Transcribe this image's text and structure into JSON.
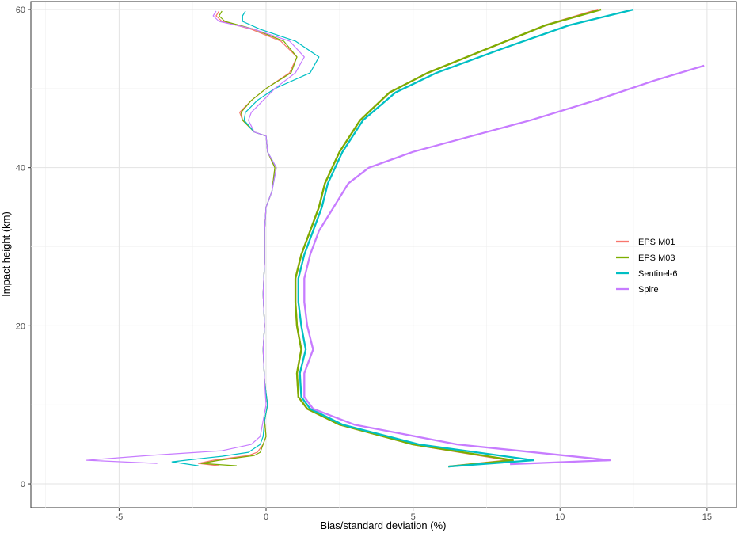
{
  "chart_data": {
    "type": "line",
    "title": "",
    "xlabel": "Bias/standard deviation (%)",
    "ylabel": "Impact height (km)",
    "xlim": [
      -8,
      16
    ],
    "ylim": [
      -3,
      61
    ],
    "x_ticks": [
      {
        "value": -5,
        "label": "-5"
      },
      {
        "value": 0,
        "label": "0"
      },
      {
        "value": 5,
        "label": "5"
      },
      {
        "value": 10,
        "label": "10"
      },
      {
        "value": 15,
        "label": "15"
      }
    ],
    "y_ticks": [
      {
        "value": 0,
        "label": "0"
      },
      {
        "value": 20,
        "label": "20"
      },
      {
        "value": 40,
        "label": "40"
      },
      {
        "value": 60,
        "label": "60"
      }
    ],
    "grid": true,
    "legend_position": "right",
    "series": [
      {
        "name": "EPS M01",
        "color": "#F8766D",
        "bias": [
          [
            -1.6,
            2.3
          ],
          [
            -2.3,
            2.6
          ],
          [
            -1.8,
            3
          ],
          [
            -1.2,
            3.3
          ],
          [
            -0.6,
            3.6
          ],
          [
            -0.3,
            4
          ],
          [
            -0.1,
            5
          ],
          [
            0,
            6
          ],
          [
            -0.05,
            8
          ],
          [
            0.05,
            10
          ],
          [
            -0.05,
            13
          ],
          [
            -0.1,
            17
          ],
          [
            -0.05,
            20
          ],
          [
            -0.1,
            24
          ],
          [
            -0.05,
            28
          ],
          [
            -0.05,
            32
          ],
          [
            0,
            35
          ],
          [
            0.2,
            37
          ],
          [
            0.3,
            40
          ],
          [
            0.05,
            42
          ],
          [
            0,
            44
          ],
          [
            -0.4,
            44.5
          ],
          [
            -0.8,
            46
          ],
          [
            -0.9,
            47
          ],
          [
            -0.5,
            48.5
          ],
          [
            0,
            50
          ],
          [
            0.8,
            52
          ],
          [
            1.05,
            54
          ],
          [
            0.5,
            56
          ],
          [
            -0.5,
            57.5
          ],
          [
            -1.5,
            58.5
          ],
          [
            -1.7,
            59.2
          ],
          [
            -1.6,
            59.8
          ]
        ],
        "std": [
          [
            6.2,
            2.2
          ],
          [
            8.3,
            3
          ],
          [
            5,
            5
          ],
          [
            2.5,
            7.5
          ],
          [
            1.4,
            9.5
          ],
          [
            1.1,
            11
          ],
          [
            1.05,
            14
          ],
          [
            1.2,
            17
          ],
          [
            1.05,
            20
          ],
          [
            1.0,
            23
          ],
          [
            1.0,
            26
          ],
          [
            1.2,
            29
          ],
          [
            1.5,
            32
          ],
          [
            1.8,
            35
          ],
          [
            2.0,
            38
          ],
          [
            2.5,
            42
          ],
          [
            3.2,
            46
          ],
          [
            4.2,
            49.5
          ],
          [
            5.5,
            52
          ],
          [
            7.5,
            55
          ],
          [
            9.5,
            58
          ],
          [
            11.3,
            60
          ]
        ]
      },
      {
        "name": "EPS M03",
        "color": "#7CAE00",
        "bias": [
          [
            -1.0,
            2.3
          ],
          [
            -2.2,
            2.6
          ],
          [
            -1.6,
            3
          ],
          [
            -1.0,
            3.3
          ],
          [
            -0.4,
            3.6
          ],
          [
            -0.2,
            4
          ],
          [
            -0.1,
            5
          ],
          [
            0,
            6
          ],
          [
            -0.05,
            8
          ],
          [
            0.05,
            10
          ],
          [
            -0.05,
            13
          ],
          [
            -0.1,
            17
          ],
          [
            -0.05,
            20
          ],
          [
            -0.1,
            24
          ],
          [
            -0.05,
            28
          ],
          [
            -0.05,
            32
          ],
          [
            0,
            35
          ],
          [
            0.2,
            37
          ],
          [
            0.3,
            40
          ],
          [
            0.05,
            42
          ],
          [
            0,
            44
          ],
          [
            -0.4,
            44.5
          ],
          [
            -0.8,
            46
          ],
          [
            -0.85,
            47
          ],
          [
            -0.5,
            48.5
          ],
          [
            0,
            50
          ],
          [
            0.85,
            52
          ],
          [
            1.05,
            54
          ],
          [
            0.6,
            56
          ],
          [
            -0.4,
            57.5
          ],
          [
            -1.4,
            58.5
          ],
          [
            -1.6,
            59.2
          ],
          [
            -1.5,
            59.8
          ]
        ],
        "std": [
          [
            6.2,
            2.2
          ],
          [
            8.4,
            3
          ],
          [
            5,
            5
          ],
          [
            2.5,
            7.5
          ],
          [
            1.4,
            9.5
          ],
          [
            1.1,
            11
          ],
          [
            1.05,
            14
          ],
          [
            1.2,
            17
          ],
          [
            1.05,
            20
          ],
          [
            1.0,
            23
          ],
          [
            1.0,
            26
          ],
          [
            1.2,
            29
          ],
          [
            1.5,
            32
          ],
          [
            1.8,
            35
          ],
          [
            2.0,
            38
          ],
          [
            2.5,
            42
          ],
          [
            3.2,
            46
          ],
          [
            4.2,
            49.5
          ],
          [
            5.5,
            52
          ],
          [
            7.5,
            55
          ],
          [
            9.5,
            58
          ],
          [
            11.4,
            60
          ]
        ]
      },
      {
        "name": "Sentinel-6",
        "color": "#00BFC4",
        "bias": [
          [
            -2.3,
            2.3
          ],
          [
            -3.2,
            2.8
          ],
          [
            -2.5,
            3.1
          ],
          [
            -1.5,
            3.5
          ],
          [
            -0.6,
            4
          ],
          [
            -0.2,
            5
          ],
          [
            -0.1,
            6
          ],
          [
            -0.05,
            8
          ],
          [
            0.05,
            10
          ],
          [
            -0.05,
            13
          ],
          [
            -0.1,
            17
          ],
          [
            -0.05,
            20
          ],
          [
            -0.1,
            24
          ],
          [
            -0.05,
            28
          ],
          [
            -0.05,
            32
          ],
          [
            0,
            35
          ],
          [
            0.2,
            37
          ],
          [
            0.35,
            40
          ],
          [
            0.05,
            42
          ],
          [
            0,
            44
          ],
          [
            -0.4,
            44.5
          ],
          [
            -0.75,
            46
          ],
          [
            -0.7,
            47
          ],
          [
            -0.3,
            48.5
          ],
          [
            0.3,
            50
          ],
          [
            1.5,
            52
          ],
          [
            1.8,
            54
          ],
          [
            1.0,
            56
          ],
          [
            -0.2,
            57.5
          ],
          [
            -0.8,
            58.5
          ],
          [
            -0.8,
            59.2
          ],
          [
            -0.7,
            59.8
          ]
        ],
        "std": [
          [
            6.2,
            2.2
          ],
          [
            9.1,
            3
          ],
          [
            5.2,
            5
          ],
          [
            2.6,
            7.5
          ],
          [
            1.5,
            9.5
          ],
          [
            1.2,
            11
          ],
          [
            1.15,
            14
          ],
          [
            1.35,
            17
          ],
          [
            1.2,
            20
          ],
          [
            1.1,
            23
          ],
          [
            1.1,
            26
          ],
          [
            1.3,
            29
          ],
          [
            1.6,
            32
          ],
          [
            1.9,
            35
          ],
          [
            2.1,
            38
          ],
          [
            2.6,
            42
          ],
          [
            3.3,
            46
          ],
          [
            4.4,
            49.5
          ],
          [
            5.8,
            52
          ],
          [
            8.0,
            55
          ],
          [
            10.3,
            58
          ],
          [
            12.5,
            60
          ]
        ]
      },
      {
        "name": "Spire",
        "color": "#C77CFF",
        "bias": [
          [
            -3.7,
            2.6
          ],
          [
            -6.1,
            3
          ],
          [
            -4,
            3.6
          ],
          [
            -1.5,
            4.2
          ],
          [
            -0.5,
            5
          ],
          [
            -0.2,
            6
          ],
          [
            -0.1,
            8
          ],
          [
            0,
            10
          ],
          [
            -0.05,
            13
          ],
          [
            -0.1,
            17
          ],
          [
            -0.05,
            20
          ],
          [
            -0.1,
            24
          ],
          [
            -0.05,
            28
          ],
          [
            -0.05,
            32
          ],
          [
            0,
            35
          ],
          [
            0.2,
            37
          ],
          [
            0.35,
            40
          ],
          [
            0.05,
            42
          ],
          [
            0,
            44
          ],
          [
            -0.4,
            44.5
          ],
          [
            -0.6,
            46
          ],
          [
            -0.5,
            47
          ],
          [
            -0.1,
            48.5
          ],
          [
            0.3,
            50
          ],
          [
            1.0,
            52
          ],
          [
            1.3,
            54
          ],
          [
            0.8,
            56
          ],
          [
            -0.4,
            57.5
          ],
          [
            -1.6,
            58.5
          ],
          [
            -1.8,
            59.2
          ],
          [
            -1.7,
            59.8
          ]
        ],
        "std": [
          [
            8.3,
            2.5
          ],
          [
            11.7,
            3
          ],
          [
            6.5,
            5
          ],
          [
            3.0,
            7.5
          ],
          [
            1.6,
            9.5
          ],
          [
            1.3,
            11
          ],
          [
            1.3,
            14
          ],
          [
            1.6,
            17
          ],
          [
            1.4,
            20
          ],
          [
            1.3,
            23
          ],
          [
            1.3,
            26
          ],
          [
            1.5,
            29
          ],
          [
            1.8,
            32
          ],
          [
            2.3,
            35
          ],
          [
            2.8,
            38
          ],
          [
            3.5,
            40
          ],
          [
            5.0,
            42
          ],
          [
            7.0,
            44
          ],
          [
            9.0,
            46
          ],
          [
            11.2,
            48.5
          ],
          [
            13.2,
            51
          ],
          [
            14.9,
            52.9
          ]
        ]
      }
    ]
  }
}
